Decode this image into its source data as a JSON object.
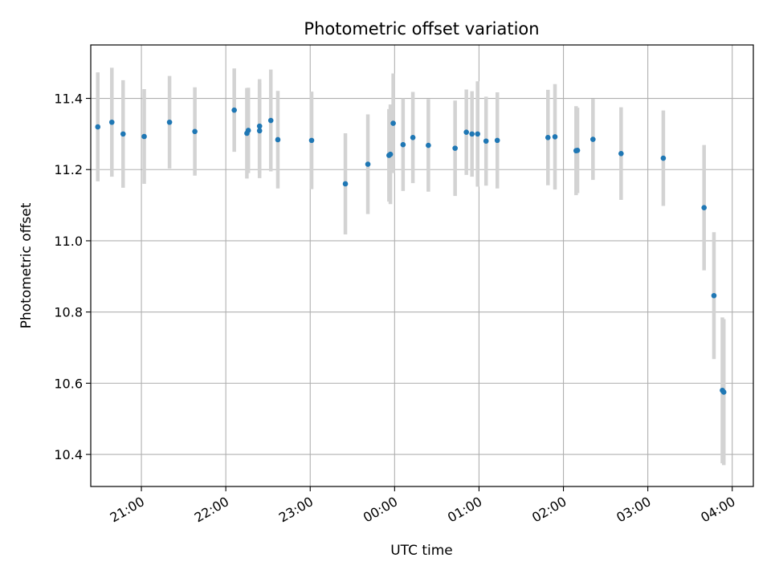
{
  "chart_data": {
    "type": "scatter",
    "title": "Photometric offset variation",
    "xlabel": "UTC time",
    "ylabel": "Photometric offset",
    "x_axis": {
      "kind": "time",
      "range": [
        "20:24",
        "04:15"
      ],
      "tick_values": [
        "21:00",
        "22:00",
        "23:00",
        "00:00",
        "01:00",
        "02:00",
        "03:00",
        "04:00"
      ],
      "tick_labels": [
        "21:00",
        "22:00",
        "23:00",
        "00:00",
        "01:00",
        "02:00",
        "03:00",
        "04:00"
      ],
      "tick_label_rotation": 30
    },
    "y_axis": {
      "range": [
        10.31,
        11.55
      ],
      "ticks": [
        10.4,
        10.6,
        10.8,
        11.0,
        11.2,
        11.4
      ],
      "tick_labels": [
        "10.4",
        "10.6",
        "10.8",
        "11.0",
        "11.2",
        "11.4"
      ]
    },
    "grid": true,
    "colors": {
      "points": "#1f77b4",
      "errorbars": "#d3d3d3",
      "grid": "#b0b0b0"
    },
    "points": [
      {
        "time": "20:29",
        "y": 11.32,
        "err": 0.153
      },
      {
        "time": "20:39",
        "y": 11.333,
        "err": 0.153
      },
      {
        "time": "20:47",
        "y": 11.3,
        "err": 0.151
      },
      {
        "time": "21:02",
        "y": 11.293,
        "err": 0.133
      },
      {
        "time": "21:20",
        "y": 11.333,
        "err": 0.13
      },
      {
        "time": "21:38",
        "y": 11.307,
        "err": 0.124
      },
      {
        "time": "22:06",
        "y": 11.367,
        "err": 0.117
      },
      {
        "time": "22:15",
        "y": 11.302,
        "err": 0.127
      },
      {
        "time": "22:16",
        "y": 11.31,
        "err": 0.12
      },
      {
        "time": "22:24",
        "y": 11.309,
        "err": 0.133
      },
      {
        "time": "22:24",
        "y": 11.322,
        "err": 0.132
      },
      {
        "time": "22:32",
        "y": 11.338,
        "err": 0.143
      },
      {
        "time": "22:37",
        "y": 11.284,
        "err": 0.137
      },
      {
        "time": "23:01",
        "y": 11.282,
        "err": 0.137
      },
      {
        "time": "23:25",
        "y": 11.16,
        "err": 0.142
      },
      {
        "time": "23:41",
        "y": 11.215,
        "err": 0.14
      },
      {
        "time": "23:56",
        "y": 11.24,
        "err": 0.13
      },
      {
        "time": "23:57",
        "y": 11.243,
        "err": 0.14
      },
      {
        "time": "23:59",
        "y": 11.33,
        "err": 0.14
      },
      {
        "time": "00:06",
        "y": 11.27,
        "err": 0.13
      },
      {
        "time": "00:13",
        "y": 11.29,
        "err": 0.128
      },
      {
        "time": "00:24",
        "y": 11.268,
        "err": 0.13
      },
      {
        "time": "00:43",
        "y": 11.26,
        "err": 0.134
      },
      {
        "time": "00:51",
        "y": 11.305,
        "err": 0.12
      },
      {
        "time": "00:55",
        "y": 11.3,
        "err": 0.12
      },
      {
        "time": "00:59",
        "y": 11.3,
        "err": 0.148
      },
      {
        "time": "01:05",
        "y": 11.28,
        "err": 0.125
      },
      {
        "time": "01:13",
        "y": 11.282,
        "err": 0.135
      },
      {
        "time": "01:49",
        "y": 11.29,
        "err": 0.134
      },
      {
        "time": "01:54",
        "y": 11.292,
        "err": 0.148
      },
      {
        "time": "02:09",
        "y": 11.253,
        "err": 0.125
      },
      {
        "time": "02:10",
        "y": 11.254,
        "err": 0.12
      },
      {
        "time": "02:21",
        "y": 11.285,
        "err": 0.114
      },
      {
        "time": "02:41",
        "y": 11.245,
        "err": 0.13
      },
      {
        "time": "03:11",
        "y": 11.232,
        "err": 0.134
      },
      {
        "time": "03:40",
        "y": 11.093,
        "err": 0.176
      },
      {
        "time": "03:47",
        "y": 10.846,
        "err": 0.178
      },
      {
        "time": "03:53",
        "y": 10.58,
        "err": 0.205
      },
      {
        "time": "03:54",
        "y": 10.575,
        "err": 0.205
      }
    ]
  }
}
